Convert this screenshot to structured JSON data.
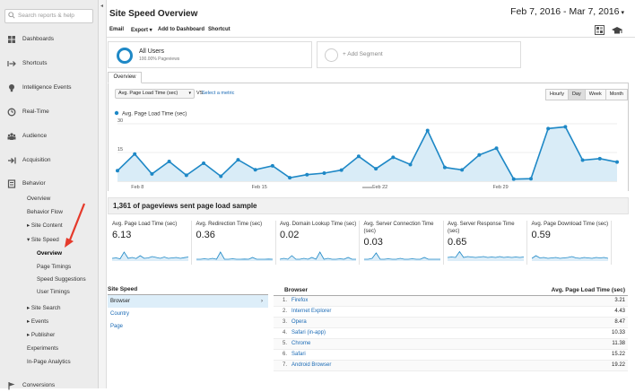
{
  "sidebar": {
    "search_placeholder": "Search reports & help",
    "items": [
      {
        "label": "Dashboards",
        "icon": "dashboard-grid-icon"
      },
      {
        "label": "Shortcuts",
        "icon": "shortcut-arrow-icon"
      },
      {
        "label": "Intelligence Events",
        "icon": "lightbulb-icon"
      },
      {
        "label": "Real-Time",
        "icon": "realtime-clock-icon"
      },
      {
        "label": "Audience",
        "icon": "audience-people-icon"
      },
      {
        "label": "Acquisition",
        "icon": "acquisition-arrow-icon"
      },
      {
        "label": "Behavior",
        "icon": "behavior-page-icon"
      }
    ],
    "behavior_sub": [
      {
        "label": "Overview"
      },
      {
        "label": "Behavior Flow"
      },
      {
        "label": "▸ Site Content"
      },
      {
        "label": "▾ Site Speed"
      },
      {
        "label": "Overview"
      },
      {
        "label": "Page Timings"
      },
      {
        "label": "Speed Suggestions"
      },
      {
        "label": "User Timings"
      },
      {
        "label": "▸ Site Search"
      },
      {
        "label": "▸ Events"
      },
      {
        "label": "▸ Publisher"
      },
      {
        "label": "Experiments"
      },
      {
        "label": "In-Page Analytics"
      }
    ],
    "conversions": {
      "label": "Conversions",
      "icon": "conversions-flag-icon"
    },
    "collapse_glyph": "◂"
  },
  "header": {
    "title": "Site Speed Overview",
    "date_range": "Feb 7, 2016 - Mar 7, 2016",
    "date_caret": "▾"
  },
  "toolbar": {
    "email": "Email",
    "export": "Export ▾",
    "add_dashboard": "Add to Dashboard",
    "shortcut": "Shortcut"
  },
  "segments": {
    "active_name": "All Users",
    "active_sub": "100.00% Pageviews",
    "add_label": "+ Add Segment"
  },
  "tabs": {
    "overview": "Overview"
  },
  "chart_controls": {
    "metric_select": "Avg. Page Load Time (sec)",
    "vs": "VS.",
    "select_metric": "Select a metric",
    "granularity": [
      "Hourly",
      "Day",
      "Week",
      "Month"
    ],
    "granularity_selected": "Day"
  },
  "chart_data": {
    "type": "area",
    "legend": "Avg. Page Load Time (sec)",
    "ylim": [
      0,
      30
    ],
    "yticks": [
      15,
      30
    ],
    "xtick_labels": [
      "Feb 8",
      "Feb 15",
      "Feb 22",
      "Feb 29"
    ],
    "xtick_index": [
      1,
      8,
      15,
      22
    ],
    "x": [
      "Feb 7",
      "Feb 8",
      "Feb 9",
      "Feb 10",
      "Feb 11",
      "Feb 12",
      "Feb 13",
      "Feb 14",
      "Feb 15",
      "Feb 16",
      "Feb 17",
      "Feb 18",
      "Feb 19",
      "Feb 20",
      "Feb 21",
      "Feb 22",
      "Feb 23",
      "Feb 24",
      "Feb 25",
      "Feb 26",
      "Feb 27",
      "Feb 28",
      "Feb 29",
      "Mar 1",
      "Mar 2",
      "Mar 3",
      "Mar 4",
      "Mar 5",
      "Mar 6",
      "Mar 7"
    ],
    "series": [
      {
        "name": "Avg. Page Load Time (sec)",
        "values": [
          5.5,
          14.2,
          3.8,
          10.3,
          3.1,
          9.4,
          2.6,
          11.2,
          6.0,
          8.0,
          1.8,
          3.4,
          4.2,
          5.8,
          13.0,
          6.5,
          12.5,
          8.7,
          26.5,
          7.2,
          5.9,
          13.7,
          17.2,
          1.1,
          1.3,
          27.5,
          28.4,
          11.0,
          11.8,
          10.0
        ]
      }
    ],
    "color": "#1e88c6",
    "fill": "#d9ecf7"
  },
  "summary_title": "1,361 of pageviews sent page load sample",
  "metrics": [
    {
      "label": "Avg. Page Load Time (sec)",
      "value": "6.13"
    },
    {
      "label": "Avg. Redirection Time (sec)",
      "value": "0.36"
    },
    {
      "label": "Avg. Domain Lookup Time (sec)",
      "value": "0.02"
    },
    {
      "label": "Avg. Server Connection Time (sec)",
      "value": "0.03"
    },
    {
      "label": "Avg. Server Response Time (sec)",
      "value": "0.65"
    },
    {
      "label": "Avg. Page Download Time (sec)",
      "value": "0.59"
    }
  ],
  "site_speed_table": {
    "header": "Site Speed",
    "rows": [
      "Browser",
      "Country",
      "Page"
    ],
    "selected": "Browser",
    "caret": "›"
  },
  "browser_table": {
    "header_dim": "Browser",
    "header_metric": "Avg. Page Load Time (sec)",
    "rows": [
      {
        "n": "1.",
        "name": "Firefox",
        "value": "3.21"
      },
      {
        "n": "2.",
        "name": "Internet Explorer",
        "value": "4.43"
      },
      {
        "n": "3.",
        "name": "Opera",
        "value": "8.47"
      },
      {
        "n": "4.",
        "name": "Safari (in-app)",
        "value": "10.33"
      },
      {
        "n": "5.",
        "name": "Chrome",
        "value": "11.38"
      },
      {
        "n": "6.",
        "name": "Safari",
        "value": "15.22"
      },
      {
        "n": "7.",
        "name": "Android Browser",
        "value": "19.22"
      }
    ]
  }
}
